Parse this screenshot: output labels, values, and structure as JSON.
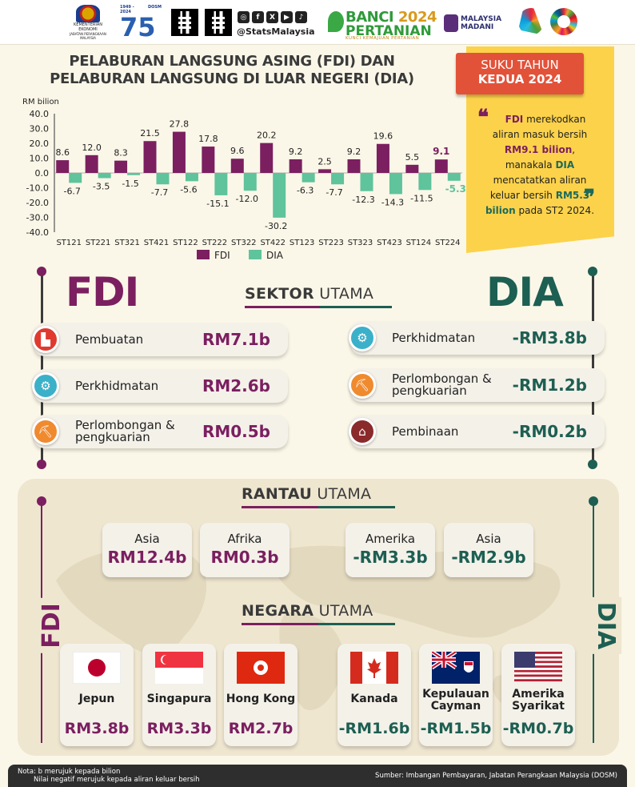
{
  "header": {
    "ministry": "KEMENTERIAN EKONOMI",
    "ministry_sub": "JABATAN PERANGKAAN MALAYSIA",
    "anniv_years": "1949 - 2024",
    "anniv_org": "DOSM",
    "handle": "@StatsMalaysia",
    "banci_line1a": "BANCI",
    "banci_line1b": "2024",
    "banci_line2": "PERTANIAN",
    "banci_tag": "KUNCI KEMAJUAN PERTANIAN",
    "madani_1": "MALAYSIA",
    "madani_2": "MADANI"
  },
  "title_line1": "PELABURAN LANGSUNG ASING (FDI) DAN",
  "title_line2": "PELABURAN LANGSUNG DI LUAR NEGERI (DIA)",
  "sticky": {
    "badge1": "SUKU TAHUN",
    "badge2": "KEDUA 2024",
    "t1": "FDI",
    "t2": " merekodkan aliran masuk bersih ",
    "t3": "RM9.1 bilion",
    "t4": ", manakala ",
    "t5": "DIA",
    "t6": " mencatatkan aliran keluar bersih ",
    "t7": "RM5.3 bilion",
    "t8": " pada ST2 2024."
  },
  "colors": {
    "fdi": "#7b1f60",
    "dia": "#5fc39c",
    "dia_text": "#1d5f52",
    "sticky": "#fcd24a",
    "badge": "#e25239"
  },
  "chart_data": {
    "type": "bar",
    "ylabel": "RM bilion",
    "ylim": [
      -40,
      40
    ],
    "yticks": [
      "40.0",
      "30.0",
      "20.0",
      "10.0",
      "0.0",
      "-10.0",
      "-20.0",
      "-30.0",
      "-40.0"
    ],
    "categories": [
      "ST121",
      "ST221",
      "ST321",
      "ST421",
      "ST122",
      "ST222",
      "ST322",
      "ST422",
      "ST123",
      "ST223",
      "ST323",
      "ST423",
      "ST124",
      "ST224"
    ],
    "series": [
      {
        "name": "FDI",
        "values": [
          8.6,
          12.0,
          8.3,
          21.5,
          27.8,
          17.8,
          9.6,
          20.2,
          9.2,
          2.5,
          9.2,
          19.6,
          5.5,
          9.1
        ],
        "labels": [
          "8.6",
          "12.0",
          "8.3",
          "21.5",
          "27.8",
          "17.8",
          "9.6",
          "20.2",
          "9.2",
          "2.5",
          "9.2",
          "19.6",
          "5.5",
          "9.1"
        ]
      },
      {
        "name": "DIA",
        "values": [
          -6.7,
          -3.5,
          -1.5,
          -7.7,
          -5.6,
          -15.1,
          -12.0,
          -30.2,
          -6.3,
          -7.7,
          -12.3,
          -14.3,
          -11.5,
          -5.3
        ],
        "labels": [
          "-6.7",
          "-3.5",
          "-1.5",
          "-7.7",
          "-5.6",
          "-15.1",
          "-12.0",
          "-30.2",
          "-6.3",
          "-7.7",
          "-12.3",
          "-14.3",
          "-11.5",
          "-5.3"
        ]
      }
    ],
    "legend": "bottom"
  },
  "sector": {
    "fdi_head": "FDI",
    "dia_head": "DIA",
    "title_b": "SEKTOR",
    "title_n": " UTAMA",
    "fdi": [
      {
        "label": "Pembuatan",
        "value": "RM7.1b",
        "icon": "factory-icon"
      },
      {
        "label": "Perkhidmatan",
        "value": "RM2.6b",
        "icon": "services-icon"
      },
      {
        "label": "Perlombongan & pengkuarian",
        "value": "RM0.5b",
        "icon": "mining-icon"
      }
    ],
    "dia": [
      {
        "label": "Perkhidmatan",
        "value": "-RM3.8b",
        "icon": "services-icon"
      },
      {
        "label": "Perlombongan & pengkuarian",
        "value": "-RM1.2b",
        "icon": "mining-icon"
      },
      {
        "label": "Pembinaan",
        "value": "-RM0.2b",
        "icon": "construction-icon"
      }
    ]
  },
  "region": {
    "title_b": "RANTAU",
    "title_n": " UTAMA",
    "fdi": [
      {
        "name": "Asia",
        "value": "RM12.4b"
      },
      {
        "name": "Afrika",
        "value": "RM0.3b"
      }
    ],
    "dia": [
      {
        "name": "Amerika",
        "value": "-RM3.3b"
      },
      {
        "name": "Asia",
        "value": "-RM2.9b"
      }
    ]
  },
  "country": {
    "title_b": "NEGARA",
    "title_n": " UTAMA",
    "fdi_side": "FDI",
    "dia_side": "DIA",
    "fdi": [
      {
        "name": "Jepun",
        "value": "RM3.8b",
        "flag": "japan-flag"
      },
      {
        "name": "Singapura",
        "value": "RM3.3b",
        "flag": "singapore-flag"
      },
      {
        "name": "Hong Kong",
        "value": "RM2.7b",
        "flag": "hongkong-flag"
      }
    ],
    "dia": [
      {
        "name": "Kanada",
        "value": "-RM1.6b",
        "flag": "canada-flag"
      },
      {
        "name": "Kepulauan Cayman",
        "value": "-RM1.5b",
        "flag": "cayman-flag"
      },
      {
        "name": "Amerika Syarikat",
        "value": "-RM0.7b",
        "flag": "usa-flag"
      }
    ]
  },
  "footer": {
    "note1": "Nota: b merujuk kepada bilion",
    "note2": "Nilai negatif merujuk kepada aliran keluar bersih",
    "source": "Sumber: Imbangan Pembayaran, Jabatan Perangkaan Malaysia (DOSM)"
  }
}
